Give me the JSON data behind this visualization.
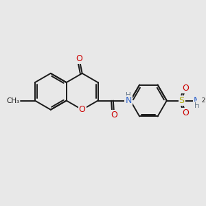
{
  "bg_color": "#e8e8e8",
  "bond_color": "#1a1a1a",
  "bond_width": 1.4,
  "atom_colors": {
    "O": "#cc0000",
    "N": "#3366cc",
    "S": "#aaaa00",
    "C": "#1a1a1a",
    "H": "#667788"
  },
  "font_size": 9,
  "font_size_small": 7.5
}
